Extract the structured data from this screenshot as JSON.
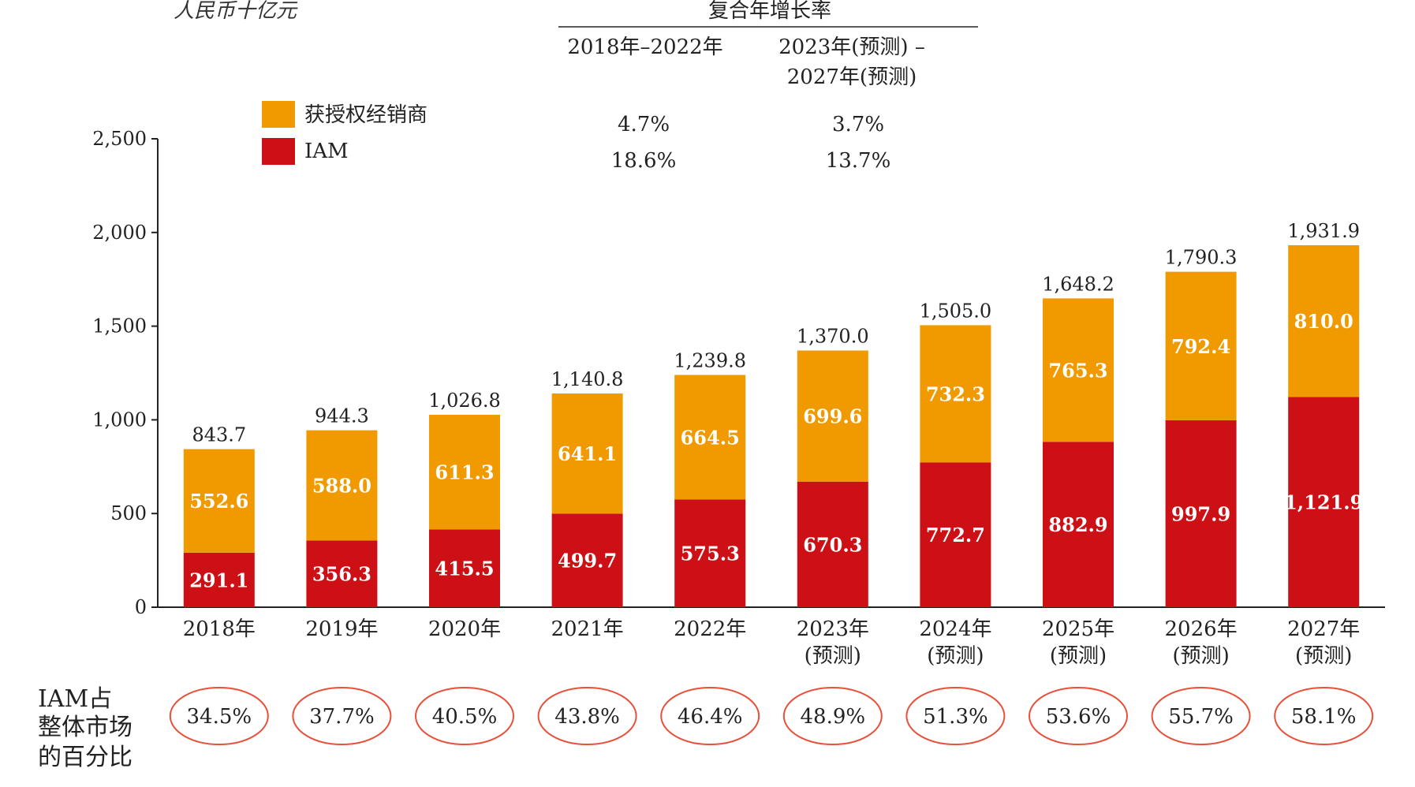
{
  "unit_label": "人民币十亿元",
  "cagr": {
    "title": "复合年增长率",
    "periods": [
      "2018年–2022年",
      "2023年(预测) –",
      "2027年(预测)"
    ],
    "rows": [
      {
        "values": [
          "4.7%",
          "3.7%"
        ]
      },
      {
        "values": [
          "18.6%",
          "13.7%"
        ]
      }
    ]
  },
  "legend": [
    {
      "label": "获授权经销商",
      "color": "#F09A00"
    },
    {
      "label": "IAM",
      "color": "#CC1016"
    }
  ],
  "share_row": {
    "label_lines": [
      "IAM占",
      "整体市场",
      "的百分比"
    ],
    "values": [
      "34.5%",
      "37.7%",
      "40.5%",
      "43.8%",
      "46.4%",
      "48.9%",
      "51.3%",
      "53.6%",
      "55.7%",
      "58.1%"
    ],
    "ring_color": "#E8503A"
  },
  "chart_data": {
    "type": "bar",
    "stacked": true,
    "categories": [
      "2018年",
      "2019年",
      "2020年",
      "2021年",
      "2022年",
      "2023年",
      "2024年",
      "2025年",
      "2026年",
      "2027年"
    ],
    "category_sublabels": [
      "",
      "",
      "",
      "",
      "",
      "(预测)",
      "(预测)",
      "(预测)",
      "(预测)",
      "(预测)"
    ],
    "series": [
      {
        "name": "IAM",
        "values": [
          291.1,
          356.3,
          415.5,
          499.7,
          575.3,
          670.3,
          772.7,
          882.9,
          997.9,
          1121.9
        ],
        "labels": [
          "291.1",
          "356.3",
          "415.5",
          "499.7",
          "575.3",
          "670.3",
          "772.7",
          "882.9",
          "997.9",
          "1,121.9"
        ],
        "color": "#CC1016"
      },
      {
        "name": "获授权经销商",
        "values": [
          552.6,
          588.0,
          611.3,
          641.1,
          664.5,
          699.6,
          732.3,
          765.3,
          792.4,
          810.0
        ],
        "labels": [
          "552.6",
          "588.0",
          "611.3",
          "641.1",
          "664.5",
          "699.6",
          "732.3",
          "765.3",
          "792.4",
          "810.0"
        ],
        "color": "#F09A00"
      }
    ],
    "totals": [
      "843.7",
      "944.3",
      "1,026.8",
      "1,140.8",
      "1,239.8",
      "1,370.0",
      "1,505.0",
      "1,648.2",
      "1,790.3",
      "1,931.9"
    ],
    "ylim": [
      0,
      2500
    ],
    "yticks": [
      0,
      500,
      1000,
      1500,
      2000,
      2500
    ],
    "ytick_labels": [
      "0",
      "500",
      "1,000",
      "1,500",
      "2,000",
      "2,500"
    ],
    "grid": false
  }
}
